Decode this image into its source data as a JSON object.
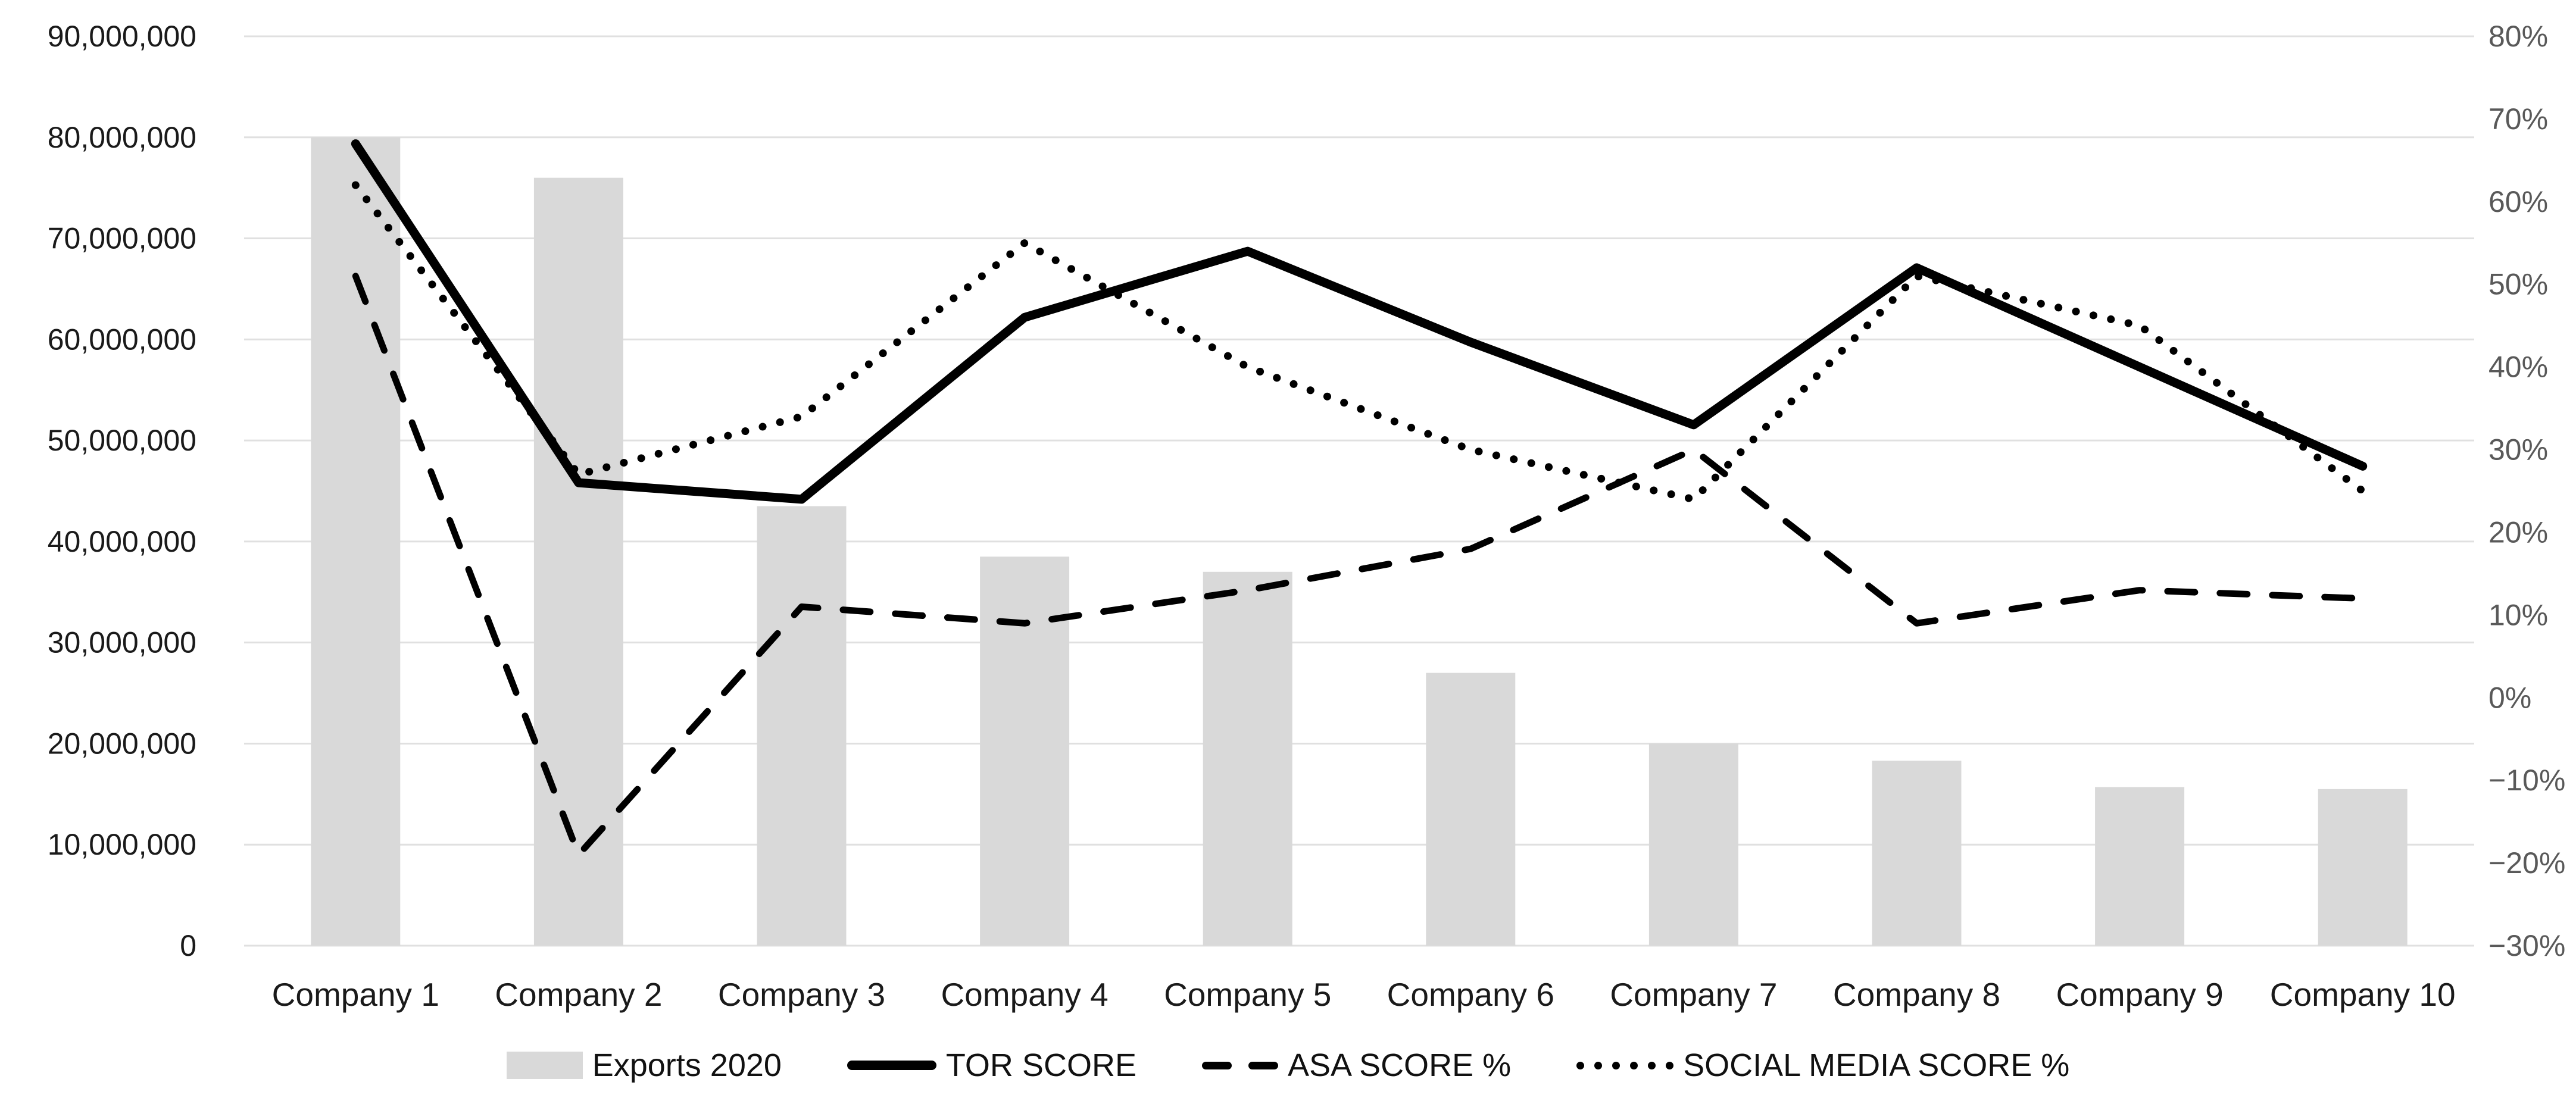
{
  "chart_data": {
    "type": "combo-bar-line",
    "title": "",
    "categories": [
      "Company 1",
      "Company 2",
      "Company 3",
      "Company 4",
      "Company 5",
      "Company 6",
      "Company 7",
      "Company 8",
      "Company 9",
      "Company 10"
    ],
    "series": [
      {
        "name": "Exports 2020",
        "type": "bar",
        "axis": "left",
        "color": "#d9d9d9",
        "values": [
          80000000,
          76000000,
          43500000,
          38500000,
          37000000,
          27000000,
          20000000,
          18300000,
          15700000,
          15500000
        ]
      },
      {
        "name": "TOR SCORE",
        "type": "line",
        "style": "solid",
        "axis": "right",
        "color": "#000000",
        "values": [
          67,
          26,
          24,
          46,
          54,
          43,
          33,
          52,
          40,
          28
        ]
      },
      {
        "name": "ASA SCORE %",
        "type": "line",
        "style": "dashed",
        "axis": "right",
        "color": "#000000",
        "values": [
          51,
          -19,
          11,
          9,
          13,
          18,
          30,
          9,
          13,
          12
        ]
      },
      {
        "name": "SOCIAL MEDIA SCORE %",
        "type": "line",
        "style": "dotted",
        "axis": "right",
        "color": "#000000",
        "values": [
          62,
          27,
          34,
          55,
          40,
          30,
          24,
          51,
          45,
          25
        ]
      }
    ],
    "left_axis": {
      "min": 0,
      "max": 90000000,
      "step": 10000000,
      "tick_labels": [
        "90,000,000",
        "80,000,000",
        "70,000,000",
        "60,000,000",
        "50,000,000",
        "40,000,000",
        "30,000,000",
        "20,000,000",
        "10,000,000",
        "0"
      ],
      "label_color": "#1a1a1a"
    },
    "right_axis": {
      "min": -30,
      "max": 80,
      "step": 10,
      "tick_labels": [
        "80%",
        "70%",
        "60%",
        "50%",
        "40%",
        "30%",
        "20%",
        "10%",
        "0%",
        "−10%",
        "−20%",
        "−30%"
      ],
      "label_color": "#595959"
    },
    "grid": true,
    "gridline_color": "#e0e0e0",
    "legend_position": "bottom",
    "xlabel": "",
    "ylabel": ""
  }
}
